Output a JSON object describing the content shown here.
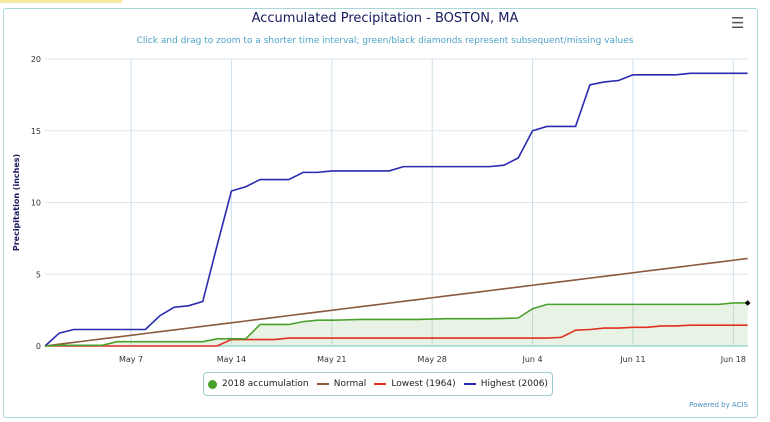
{
  "header": {
    "title": "Accumulated Precipitation - BOSTON, MA",
    "subtitle": "Click and drag to zoom to a shorter time interval; green/black diamonds represent subsequent/missing values",
    "menu_icon": "hamburger-icon"
  },
  "footer": {
    "credit": "Powered by ACIS"
  },
  "chart_data": {
    "type": "line",
    "title": "Accumulated Precipitation - BOSTON, MA",
    "ylabel": "Precipitation (inches)",
    "xlabel": "",
    "ylim": [
      0,
      20
    ],
    "yticks": [
      0,
      5,
      10,
      15,
      20
    ],
    "x_start": "May 1",
    "x_end": "Jun 19",
    "xtick_labels": [
      {
        "label": "May 7",
        "day": 6
      },
      {
        "label": "May 14",
        "day": 13
      },
      {
        "label": "May 21",
        "day": 20
      },
      {
        "label": "May 28",
        "day": 27
      },
      {
        "label": "Jun 4",
        "day": 34
      },
      {
        "label": "Jun 11",
        "day": 41
      },
      {
        "label": "Jun 18",
        "day": 48
      }
    ],
    "grid": true,
    "legend_position": "bottom",
    "series": [
      {
        "name": "2018 accumulation",
        "color": "#4aa02c",
        "fill": true,
        "values": [
          0,
          0.05,
          0.05,
          0.05,
          0.05,
          0.3,
          0.3,
          0.3,
          0.3,
          0.3,
          0.3,
          0.3,
          0.5,
          0.5,
          0.5,
          1.5,
          1.5,
          1.5,
          1.7,
          1.8,
          1.8,
          1.82,
          1.85,
          1.85,
          1.85,
          1.85,
          1.85,
          1.88,
          1.9,
          1.9,
          1.9,
          1.9,
          1.92,
          1.95,
          2.6,
          2.9,
          2.9,
          2.9,
          2.9,
          2.9,
          2.9,
          2.9,
          2.9,
          2.9,
          2.9,
          2.9,
          2.9,
          2.9,
          3.0,
          3.0
        ]
      },
      {
        "name": "Normal",
        "color": "#8b5a3c",
        "values": "linear 0 to 6.1"
      },
      {
        "name": "Lowest (1964)",
        "color": "#e03020",
        "values": [
          0,
          0,
          0,
          0,
          0,
          0,
          0,
          0,
          0,
          0,
          0,
          0,
          0,
          0.45,
          0.45,
          0.45,
          0.45,
          0.55,
          0.55,
          0.55,
          0.55,
          0.55,
          0.55,
          0.55,
          0.55,
          0.55,
          0.55,
          0.55,
          0.55,
          0.55,
          0.55,
          0.55,
          0.55,
          0.55,
          0.55,
          0.55,
          0.6,
          1.1,
          1.15,
          1.25,
          1.25,
          1.3,
          1.3,
          1.4,
          1.4,
          1.45,
          1.45,
          1.45,
          1.45,
          1.45
        ]
      },
      {
        "name": "Highest (2006)",
        "color": "#2a2ab0",
        "values": [
          0,
          0.9,
          1.15,
          1.15,
          1.15,
          1.15,
          1.15,
          1.15,
          2.1,
          2.7,
          2.8,
          3.1,
          7.0,
          10.8,
          11.1,
          11.6,
          11.6,
          11.6,
          12.1,
          12.1,
          12.2,
          12.2,
          12.2,
          12.2,
          12.2,
          12.5,
          12.5,
          12.5,
          12.5,
          12.5,
          12.5,
          12.5,
          12.6,
          13.1,
          15.0,
          15.3,
          15.3,
          15.3,
          18.2,
          18.4,
          18.5,
          18.9,
          18.9,
          18.9,
          18.9,
          19.0,
          19.0,
          19.0,
          19.0,
          19.0
        ]
      }
    ],
    "normal_end_value": 6.1,
    "missing_marker": {
      "day": 49,
      "value": 3.0,
      "color": "#000000"
    }
  }
}
